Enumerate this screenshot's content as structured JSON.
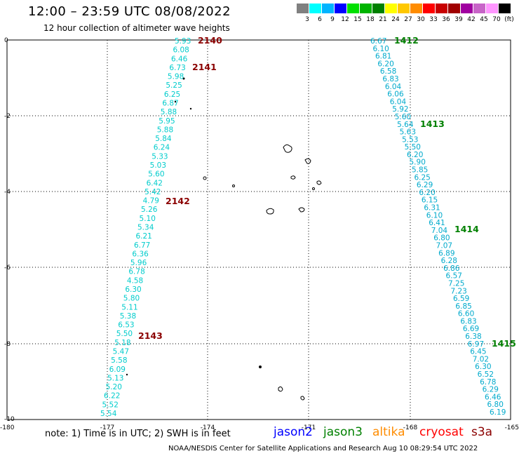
{
  "header": {
    "title": "12:00 – 23:59 UTC 08/08/2022",
    "subtitle": "12 hour collection of altimeter wave heights"
  },
  "colorbar": {
    "colors": [
      "#808080",
      "#00ffff",
      "#00b4ff",
      "#0000ff",
      "#00e000",
      "#00b400",
      "#008000",
      "#ffff00",
      "#ffc800",
      "#ff8c00",
      "#ff0000",
      "#c80000",
      "#a00000",
      "#a000a0",
      "#c864c8",
      "#ff96ff",
      "#000000"
    ],
    "labels": [
      "3",
      "6",
      "9",
      "12",
      "15",
      "18",
      "21",
      "24",
      "27",
      "30",
      "33",
      "36",
      "39",
      "42",
      "45",
      "70",
      "(ft)"
    ]
  },
  "axes": {
    "x_ticks": [
      "-180",
      "-177",
      "-174",
      "-171",
      "-168",
      "-165"
    ],
    "y_ticks": [
      "0",
      "-2",
      "-4",
      "-6",
      "-8",
      "-10"
    ]
  },
  "passes": [
    {
      "label": "2140",
      "color": "#8b0000"
    },
    {
      "label": "2141",
      "color": "#8b0000"
    },
    {
      "label": "2142",
      "color": "#8b0000"
    },
    {
      "label": "2143",
      "color": "#8b0000"
    },
    {
      "label": "1412",
      "color": "#008000"
    },
    {
      "label": "1413",
      "color": "#008000"
    },
    {
      "label": "1414",
      "color": "#008000"
    },
    {
      "label": "1415",
      "color": "#008000"
    }
  ],
  "track_left": [
    "5.93",
    "6.08",
    "6.46",
    "6.73",
    "5.98",
    "5.25",
    "6.25",
    "6.87",
    "5.88",
    "5.95",
    "5.88",
    "5.84",
    "6.24",
    "5.33",
    "5.03",
    "5.60",
    "6.42",
    "5.42",
    "4.79",
    "5.26",
    "5.10",
    "5.34",
    "6.21",
    "6.77",
    "6.36",
    "5.96",
    "6.78",
    "4.58",
    "6.30",
    "5.80",
    "5.11",
    "5.38",
    "6.53",
    "5.50",
    "5.18",
    "5.47",
    "5.58",
    "6.09",
    "5.13",
    "5.20",
    "6.22",
    "5.52",
    "5.54"
  ],
  "track_right": [
    "6.67",
    "6.10",
    "6.81",
    "6.20",
    "6.58",
    "6.83",
    "6.04",
    "6.06",
    "6.04",
    "5.92",
    "5.60",
    "5.64",
    "5.63",
    "5.53",
    "5.50",
    "6.20",
    "5.90",
    "5.85",
    "6.25",
    "6.29",
    "6.20",
    "6.15",
    "6.31",
    "6.10",
    "6.41",
    "7.04",
    "6.80",
    "7.07",
    "6.89",
    "6.28",
    "6.86",
    "6.57",
    "7.25",
    "7.23",
    "6.59",
    "6.85",
    "6.60",
    "6.83",
    "6.69",
    "6.38",
    "6.97",
    "6.45",
    "7.02",
    "6.30",
    "6.52",
    "6.78",
    "6.29",
    "6.46",
    "6.80",
    "6.19"
  ],
  "track_colors": {
    "left": "#00cccc",
    "right": "#00aacc"
  },
  "note": "note:  1) Time is in UTC;  2) SWH is in feet",
  "legend": [
    {
      "name": "jason2",
      "color": "#0000ff"
    },
    {
      "name": "jason3",
      "color": "#008000"
    },
    {
      "name": "altika",
      "color": "#ff8c00"
    },
    {
      "name": "cryosat",
      "color": "#ff0000"
    },
    {
      "name": "s3a",
      "color": "#8b0000"
    }
  ],
  "footer": "NOAA/NESDIS Center for Satellite Applications and Research    Aug 10 08:29:54 UTC 2022"
}
